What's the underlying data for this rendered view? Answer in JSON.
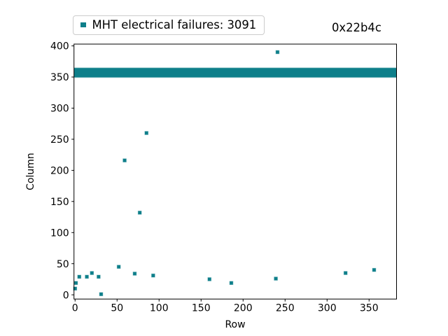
{
  "legend": {
    "label": "MHT electrical failures: 3091",
    "marker_color": "#0e7f8a"
  },
  "title_right": "0x22b4c",
  "chart_data": {
    "type": "scatter",
    "title": "0x22b4c",
    "xlabel": "Row",
    "ylabel": "Column",
    "legend_entries": [
      "MHT electrical failures: 3091"
    ],
    "failure_count": 3091,
    "x_ticks": [
      0,
      50,
      100,
      150,
      200,
      250,
      300,
      350
    ],
    "y_ticks": [
      0,
      50,
      100,
      150,
      200,
      250,
      300,
      350,
      400
    ],
    "xlim": [
      -1.3,
      382.7
    ],
    "ylim": [
      -6.8,
      402.9
    ],
    "grid": false,
    "marker": "square",
    "marker_color": "#0e7f8a",
    "band": {
      "row_range": [
        0,
        382
      ],
      "column_range": [
        352,
        362
      ],
      "description": "dense horizontal band of failures spanning all rows at columns ~352-362 (majority of the 3091 points)"
    },
    "points": [
      [
        0,
        10
      ],
      [
        1,
        19
      ],
      [
        5,
        29
      ],
      [
        14,
        29
      ],
      [
        20,
        35
      ],
      [
        28,
        29
      ],
      [
        31,
        1
      ],
      [
        52,
        45
      ],
      [
        59,
        216
      ],
      [
        71,
        34
      ],
      [
        77,
        132
      ],
      [
        85,
        260
      ],
      [
        93,
        31
      ],
      [
        160,
        25
      ],
      [
        186,
        19
      ],
      [
        239,
        26
      ],
      [
        241,
        390
      ],
      [
        322,
        35
      ],
      [
        356,
        40
      ]
    ]
  }
}
